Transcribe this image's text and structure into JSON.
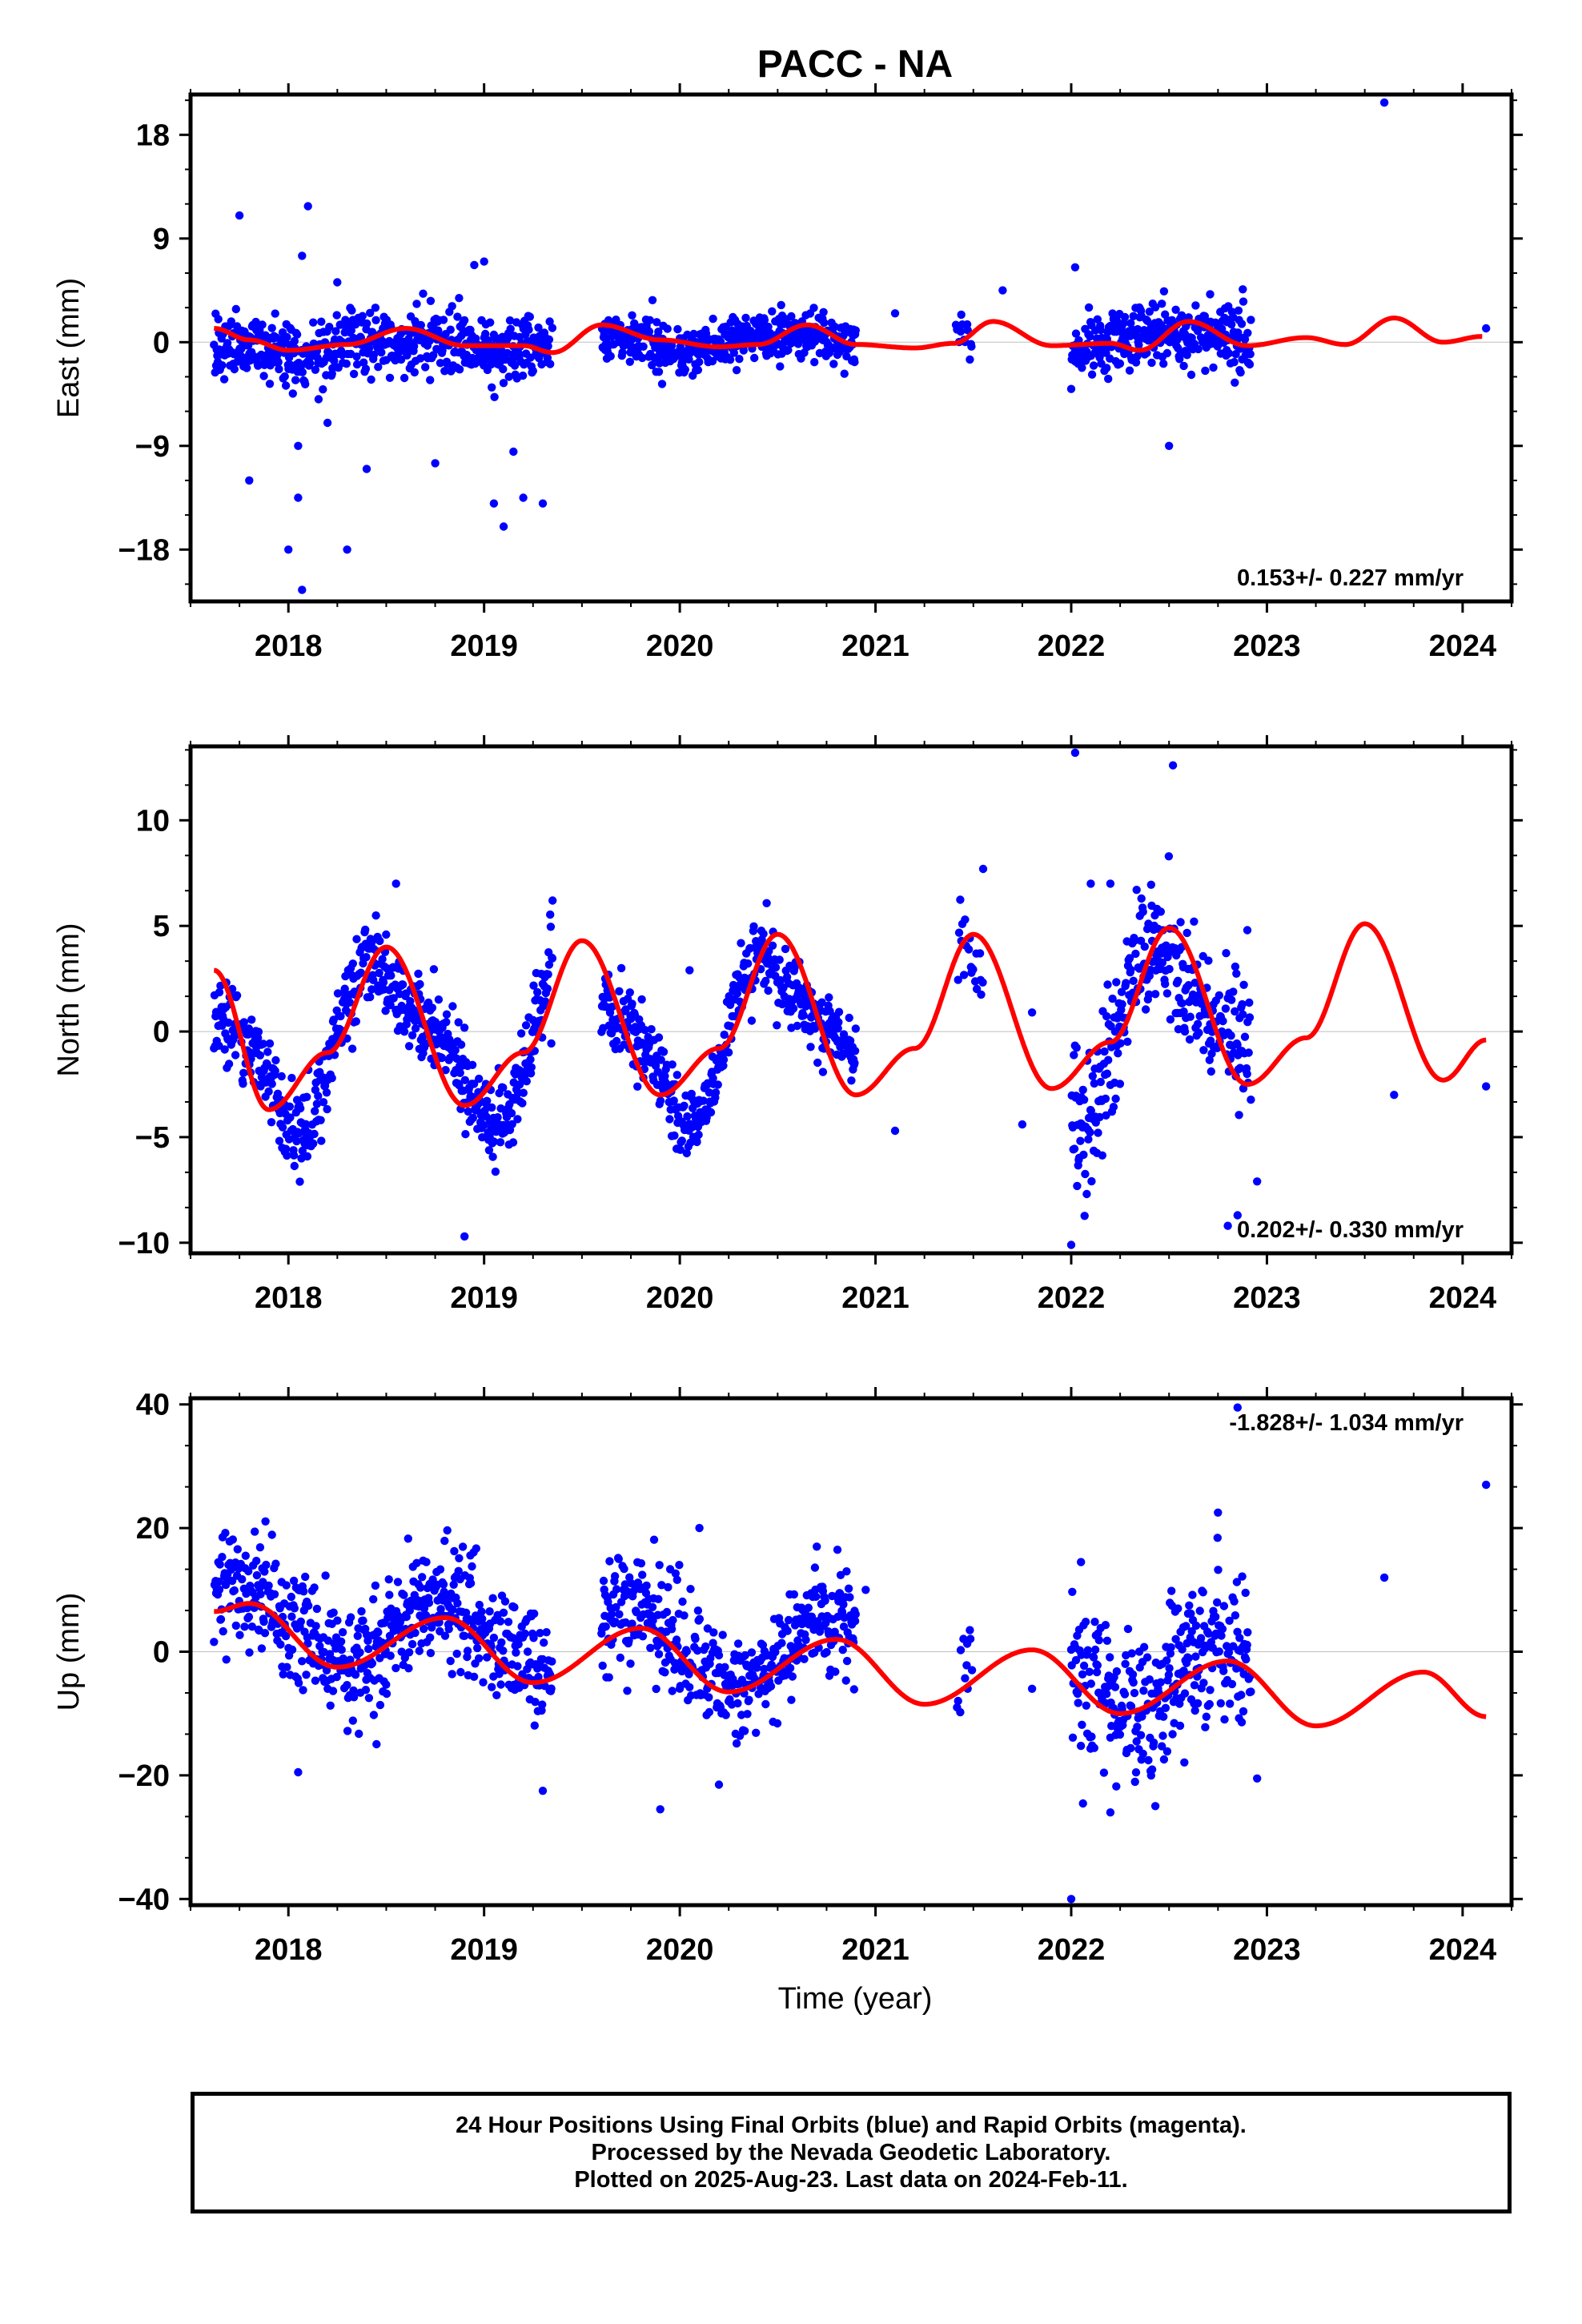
{
  "title": "PACC - NA",
  "xlabel": "Time (year)",
  "colors": {
    "final_orbits": "#0000ff",
    "model_fit": "#ff0000",
    "frame": "#000000"
  },
  "caption": {
    "line1": "24 Hour Positions Using Final Orbits (blue) and Rapid Orbits (magenta).",
    "line2": "Processed by the Nevada Geodetic Laboratory.",
    "line3": "Plotted on 2025-Aug-23. Last data on 2024-Feb-11."
  },
  "chart_data": [
    {
      "type": "scatter",
      "ylabel": "East (mm)",
      "rate_label": "0.153+/- 0.227 mm/yr",
      "rate_position": "bottom-right",
      "xlim": [
        2017.5,
        2024.25
      ],
      "ylim": [
        -22.5,
        21.5
      ],
      "x_ticks": [
        "2018",
        "2019",
        "2020",
        "2021",
        "2022",
        "2023",
        "2024"
      ],
      "y_ticks": [
        18,
        9,
        0,
        -9,
        -18
      ],
      "y_tick_labels": [
        "18",
        "9",
        "0",
        "−9",
        "−18"
      ],
      "trend_rate": 0.153,
      "seasonal": {
        "annual_amp": 0.6,
        "annual_phase_year": 0.55,
        "semi_amp": 0.3,
        "semi_phase_year": 0.3
      },
      "model_series": [
        {
          "x": 2017.62,
          "y": 1.2
        },
        {
          "x": 2017.8,
          "y": 0.2
        },
        {
          "x": 2018.0,
          "y": -0.7
        },
        {
          "x": 2018.3,
          "y": -0.2
        },
        {
          "x": 2018.6,
          "y": 1.2
        },
        {
          "x": 2018.9,
          "y": -0.3
        },
        {
          "x": 2019.2,
          "y": -0.3
        },
        {
          "x": 2019.35,
          "y": -0.9
        },
        {
          "x": 2019.6,
          "y": 1.5
        },
        {
          "x": 2019.9,
          "y": 0.2
        },
        {
          "x": 2020.2,
          "y": -0.4
        },
        {
          "x": 2020.4,
          "y": -0.2
        },
        {
          "x": 2020.65,
          "y": 1.5
        },
        {
          "x": 2020.9,
          "y": -0.2
        },
        {
          "x": 2021.2,
          "y": -0.5
        },
        {
          "x": 2021.4,
          "y": -0.1
        },
        {
          "x": 2021.6,
          "y": 1.8
        },
        {
          "x": 2021.9,
          "y": -0.3
        },
        {
          "x": 2022.2,
          "y": -0.1
        },
        {
          "x": 2022.35,
          "y": -0.7
        },
        {
          "x": 2022.6,
          "y": 1.8
        },
        {
          "x": 2022.9,
          "y": -0.3
        },
        {
          "x": 2023.2,
          "y": 0.4
        },
        {
          "x": 2023.4,
          "y": -0.2
        },
        {
          "x": 2023.65,
          "y": 2.1
        },
        {
          "x": 2023.9,
          "y": 0.0
        },
        {
          "x": 2024.1,
          "y": 0.5
        }
      ],
      "data_segments": [
        {
          "start": 2017.62,
          "end": 2019.35,
          "density": 0.9,
          "sigma": 1.3
        },
        {
          "start": 2019.6,
          "end": 2020.9,
          "density": 0.9,
          "sigma": 1.0
        },
        {
          "start": 2021.4,
          "end": 2021.5,
          "density": 0.3,
          "sigma": 1.0
        },
        {
          "start": 2022.0,
          "end": 2022.92,
          "density": 0.9,
          "sigma": 1.5
        }
      ],
      "outliers": [
        {
          "x": 2017.75,
          "y": 11.0
        },
        {
          "x": 2018.1,
          "y": 11.8
        },
        {
          "x": 2018.07,
          "y": 7.5
        },
        {
          "x": 2017.8,
          "y": -12.0
        },
        {
          "x": 2018.0,
          "y": -18.0
        },
        {
          "x": 2018.05,
          "y": -13.5
        },
        {
          "x": 2018.07,
          "y": -21.5
        },
        {
          "x": 2018.3,
          "y": -18.0
        },
        {
          "x": 2018.05,
          "y": -9.0
        },
        {
          "x": 2018.2,
          "y": -7.0
        },
        {
          "x": 2018.4,
          "y": -11.0
        },
        {
          "x": 2018.75,
          "y": -10.5
        },
        {
          "x": 2018.95,
          "y": 6.7
        },
        {
          "x": 2019.0,
          "y": 7.0
        },
        {
          "x": 2019.05,
          "y": -14.0
        },
        {
          "x": 2019.1,
          "y": -16.0
        },
        {
          "x": 2019.15,
          "y": -9.5
        },
        {
          "x": 2019.2,
          "y": -13.5
        },
        {
          "x": 2019.3,
          "y": -14.0
        },
        {
          "x": 2018.25,
          "y": 5.2
        },
        {
          "x": 2021.65,
          "y": 4.5
        },
        {
          "x": 2022.5,
          "y": -9.0
        },
        {
          "x": 2022.02,
          "y": 6.5
        },
        {
          "x": 2021.1,
          "y": 2.5
        },
        {
          "x": 2023.6,
          "y": 20.8
        },
        {
          "x": 2024.12,
          "y": 1.2
        }
      ]
    },
    {
      "type": "scatter",
      "ylabel": "North (mm)",
      "rate_label": "0.202+/- 0.330 mm/yr",
      "rate_position": "bottom-right",
      "xlim": [
        2017.5,
        2024.25
      ],
      "ylim": [
        -10.5,
        13.5
      ],
      "x_ticks": [
        "2018",
        "2019",
        "2020",
        "2021",
        "2022",
        "2023",
        "2024"
      ],
      "y_ticks": [
        10,
        5,
        0,
        -5,
        -10
      ],
      "y_tick_labels": [
        "10",
        "5",
        "0",
        "−5",
        "−10"
      ],
      "trend_rate": 0.202,
      "seasonal": {
        "annual_amp": 3.4,
        "annual_phase_year": 0.5,
        "semi_amp": 1.2,
        "semi_phase_year": 0.35
      },
      "model_series": [
        {
          "x": 2017.62,
          "y": 2.9
        },
        {
          "x": 2017.9,
          "y": -3.7
        },
        {
          "x": 2018.2,
          "y": -1.0
        },
        {
          "x": 2018.5,
          "y": 4.0
        },
        {
          "x": 2018.9,
          "y": -3.5
        },
        {
          "x": 2019.2,
          "y": -1.0
        },
        {
          "x": 2019.5,
          "y": 4.3
        },
        {
          "x": 2019.9,
          "y": -3.0
        },
        {
          "x": 2020.2,
          "y": -0.8
        },
        {
          "x": 2020.5,
          "y": 4.6
        },
        {
          "x": 2020.9,
          "y": -3.0
        },
        {
          "x": 2021.2,
          "y": -0.8
        },
        {
          "x": 2021.5,
          "y": 4.6
        },
        {
          "x": 2021.9,
          "y": -2.7
        },
        {
          "x": 2022.2,
          "y": -0.5
        },
        {
          "x": 2022.5,
          "y": 4.9
        },
        {
          "x": 2022.9,
          "y": -2.5
        },
        {
          "x": 2023.2,
          "y": -0.3
        },
        {
          "x": 2023.5,
          "y": 5.1
        },
        {
          "x": 2023.9,
          "y": -2.3
        },
        {
          "x": 2024.12,
          "y": -0.4
        }
      ],
      "data_segments": [
        {
          "start": 2017.62,
          "end": 2019.35,
          "density": 0.9,
          "sigma": 1.0
        },
        {
          "start": 2019.6,
          "end": 2020.9,
          "density": 0.9,
          "sigma": 0.9
        },
        {
          "start": 2021.4,
          "end": 2021.55,
          "density": 0.3,
          "sigma": 0.8
        },
        {
          "start": 2022.0,
          "end": 2022.92,
          "density": 0.9,
          "sigma": 1.6
        }
      ],
      "outliers": [
        {
          "x": 2018.9,
          "y": -9.7
        },
        {
          "x": 2022.02,
          "y": 13.2
        },
        {
          "x": 2022.0,
          "y": -10.1
        },
        {
          "x": 2022.52,
          "y": 12.6
        },
        {
          "x": 2022.85,
          "y": -8.7
        },
        {
          "x": 2022.8,
          "y": -9.2
        },
        {
          "x": 2022.9,
          "y": 4.8
        },
        {
          "x": 2021.55,
          "y": 7.7
        },
        {
          "x": 2021.75,
          "y": -4.4
        },
        {
          "x": 2021.8,
          "y": 0.9
        },
        {
          "x": 2021.1,
          "y": -4.7
        },
        {
          "x": 2022.1,
          "y": 7.0
        },
        {
          "x": 2022.2,
          "y": 7.0
        },
        {
          "x": 2019.35,
          "y": 6.2
        },
        {
          "x": 2020.05,
          "y": 2.9
        },
        {
          "x": 2023.65,
          "y": -3.0
        },
        {
          "x": 2024.12,
          "y": -2.6
        },
        {
          "x": 2018.55,
          "y": 7.0
        },
        {
          "x": 2022.95,
          "y": -7.1
        }
      ]
    },
    {
      "type": "scatter",
      "ylabel": "Up (mm)",
      "rate_label": "-1.828+/- 1.034 mm/yr",
      "rate_position": "top-right",
      "xlim": [
        2017.5,
        2024.25
      ],
      "ylim": [
        -41.0,
        41.0
      ],
      "x_ticks": [
        "2018",
        "2019",
        "2020",
        "2021",
        "2022",
        "2023",
        "2024"
      ],
      "y_ticks": [
        40,
        20,
        0,
        -20,
        -40
      ],
      "y_tick_labels": [
        "40",
        "20",
        "0",
        "−20",
        "−40"
      ],
      "trend_rate": -1.828,
      "seasonal": {
        "annual_amp": 5.5,
        "annual_phase_year": 0.78,
        "semi_amp": 0.8,
        "semi_phase_year": 0.2
      },
      "model_series": [
        {
          "x": 2017.62,
          "y": 6.5
        },
        {
          "x": 2017.8,
          "y": 7.8
        },
        {
          "x": 2018.25,
          "y": -2.5
        },
        {
          "x": 2018.8,
          "y": 5.5
        },
        {
          "x": 2019.25,
          "y": -5.0
        },
        {
          "x": 2019.8,
          "y": 3.8
        },
        {
          "x": 2020.25,
          "y": -6.5
        },
        {
          "x": 2020.8,
          "y": 2.0
        },
        {
          "x": 2021.25,
          "y": -8.5
        },
        {
          "x": 2021.8,
          "y": 0.3
        },
        {
          "x": 2022.25,
          "y": -10.0
        },
        {
          "x": 2022.8,
          "y": -1.5
        },
        {
          "x": 2023.25,
          "y": -12.0
        },
        {
          "x": 2023.8,
          "y": -3.3
        },
        {
          "x": 2024.12,
          "y": -10.5
        }
      ],
      "data_segments": [
        {
          "start": 2017.62,
          "end": 2019.35,
          "density": 0.9,
          "sigma": 4.5
        },
        {
          "start": 2019.6,
          "end": 2020.9,
          "density": 0.9,
          "sigma": 4.5
        },
        {
          "start": 2021.4,
          "end": 2021.5,
          "density": 0.3,
          "sigma": 3.5
        },
        {
          "start": 2022.0,
          "end": 2022.92,
          "density": 0.9,
          "sigma": 6.0
        }
      ],
      "outliers": [
        {
          "x": 2018.05,
          "y": -19.5
        },
        {
          "x": 2019.3,
          "y": -22.5
        },
        {
          "x": 2019.9,
          "y": -25.5
        },
        {
          "x": 2020.2,
          "y": -21.5
        },
        {
          "x": 2020.1,
          "y": 20.0
        },
        {
          "x": 2022.0,
          "y": -40.0
        },
        {
          "x": 2022.75,
          "y": 22.5
        },
        {
          "x": 2022.85,
          "y": 39.5
        },
        {
          "x": 2022.95,
          "y": -20.5
        },
        {
          "x": 2023.6,
          "y": 12.0
        },
        {
          "x": 2024.12,
          "y": 27.0
        },
        {
          "x": 2021.8,
          "y": -6.0
        },
        {
          "x": 2022.05,
          "y": 14.5
        },
        {
          "x": 2022.2,
          "y": -26.0
        },
        {
          "x": 2020.95,
          "y": 10.0
        },
        {
          "x": 2020.7,
          "y": 17.0
        }
      ]
    }
  ]
}
